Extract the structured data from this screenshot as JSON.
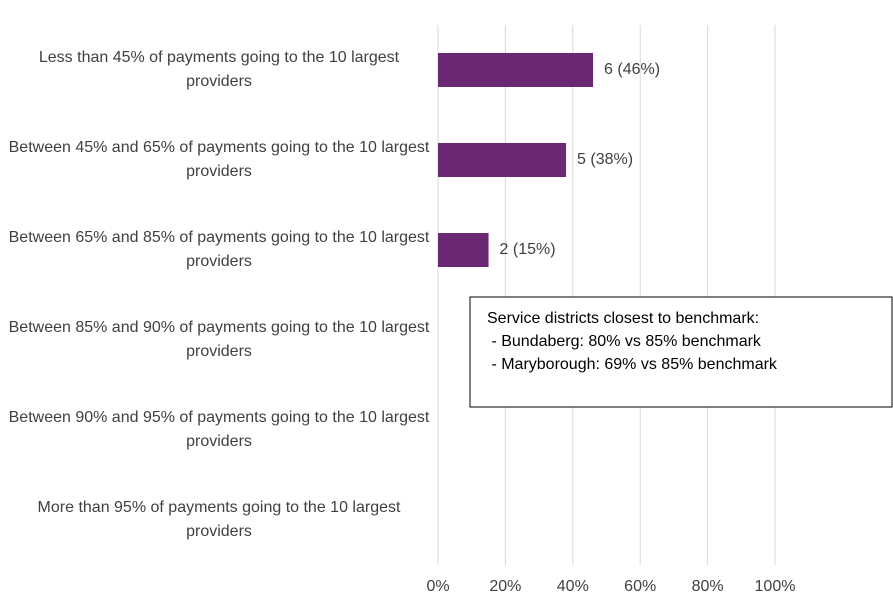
{
  "chart_data": {
    "type": "bar",
    "orientation": "horizontal",
    "categories": [
      "Less than 45% of payments going to the 10 largest providers",
      "Between 45% and 65% of payments going to the 10 largest providers",
      "Between 65% and 85% of payments going to the 10 largest providers",
      "Between 85% and 90% of payments going to the 10 largest providers",
      "Between 90% and 95% of payments going to the 10 largest providers",
      "More than 95% of payments going to the 10 largest providers"
    ],
    "values": [
      46,
      38,
      15,
      0,
      0,
      0
    ],
    "value_labels": [
      "6 (46%)",
      "5 (38%)",
      "2 (15%)",
      null,
      null,
      null
    ],
    "color": "#6b2872",
    "xlim": [
      0,
      100
    ],
    "xticks": [
      {
        "value": 0,
        "label": "0%"
      },
      {
        "value": 20,
        "label": "20%"
      },
      {
        "value": 40,
        "label": "40%"
      },
      {
        "value": 60,
        "label": "60%"
      },
      {
        "value": 80,
        "label": "80%"
      },
      {
        "value": 100,
        "label": "100%"
      }
    ],
    "grid": true,
    "annotation": [
      "Service districts closest to benchmark:",
      " - Bundaberg: 80% vs 85% benchmark",
      " - Maryborough: 69% vs 85% benchmark"
    ]
  }
}
